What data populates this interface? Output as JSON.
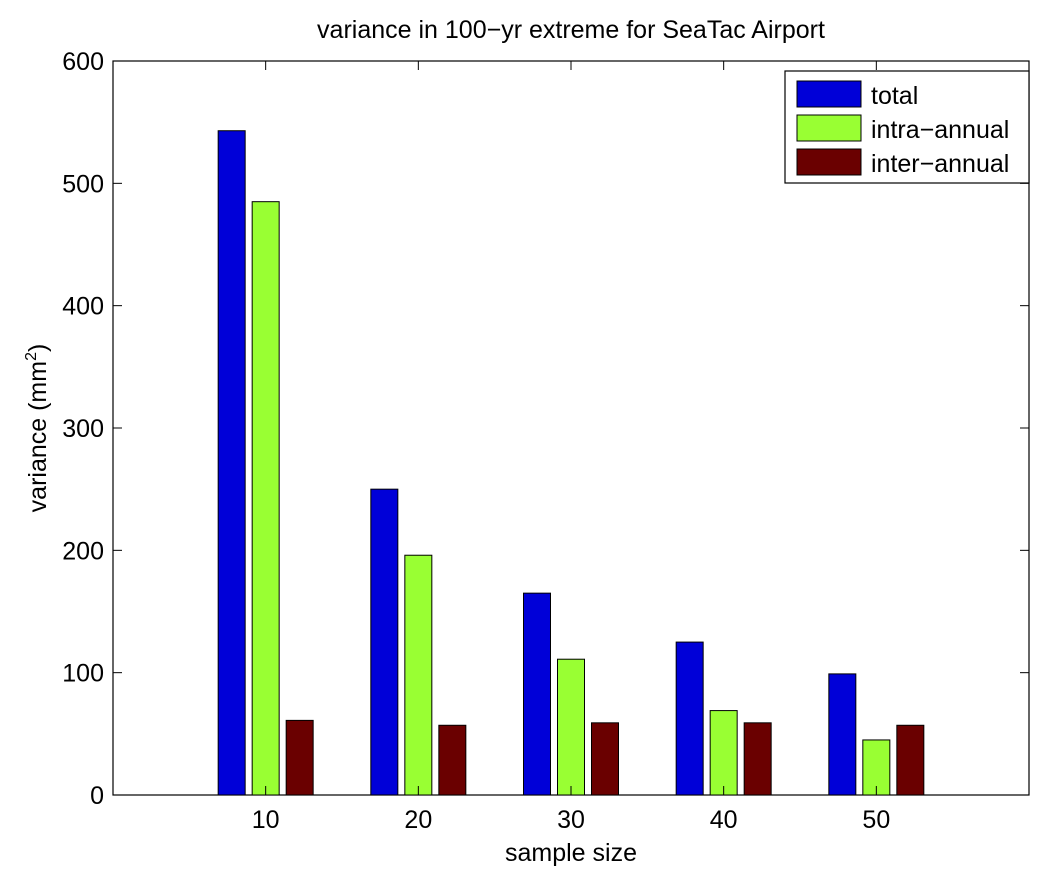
{
  "chart_data": {
    "type": "bar",
    "title": "variance in 100−yr extreme for SeaTac Airport",
    "xlabel": "sample size",
    "ylabel": "variance (mm",
    "ylabel_superscript": "2",
    "ylabel_suffix": ")",
    "categories": [
      "10",
      "20",
      "30",
      "40",
      "50"
    ],
    "series": [
      {
        "name": "total",
        "color": "#0000d8",
        "values": [
          543,
          250,
          165,
          125,
          99
        ]
      },
      {
        "name": "intra−annual",
        "color": "#99ff33",
        "values": [
          485,
          196,
          111,
          69,
          45
        ]
      },
      {
        "name": "inter−annual",
        "color": "#6a0000",
        "values": [
          61,
          57,
          59,
          59,
          57
        ]
      }
    ],
    "ylim": [
      0,
      600
    ],
    "yticks": [
      0,
      100,
      200,
      300,
      400,
      500,
      600
    ],
    "xlim": [
      0,
      60
    ],
    "grid": false,
    "legend_position": "top-right"
  }
}
